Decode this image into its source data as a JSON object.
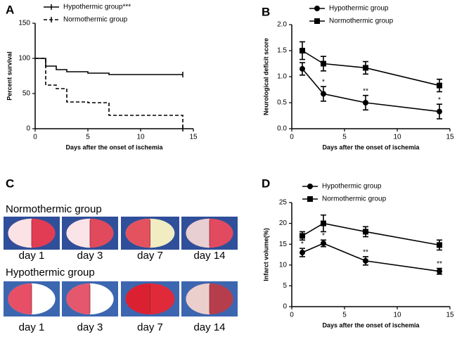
{
  "chart_data": [
    {
      "type": "line",
      "label": "A",
      "ylabel": "Percent survival",
      "xlabel": "Days after the onset of ischemia",
      "xlim": [
        0,
        15
      ],
      "xticks": [
        0,
        5,
        10,
        15
      ],
      "ylim": [
        0,
        150
      ],
      "yticks": [
        0,
        50,
        100,
        150
      ],
      "step": true,
      "series": [
        {
          "name": "Hypothermic group***",
          "color": "#000000",
          "dash": false,
          "marker": "none",
          "x": [
            0,
            1,
            2,
            3,
            5,
            7,
            14
          ],
          "values": [
            100,
            89,
            84,
            81,
            79,
            77,
            77
          ]
        },
        {
          "name": "Normothermic group",
          "color": "#000000",
          "dash": true,
          "marker": "none",
          "x": [
            0,
            1,
            2,
            3,
            5,
            7,
            14
          ],
          "values": [
            100,
            62,
            57,
            38,
            37,
            19,
            0
          ]
        }
      ]
    },
    {
      "type": "line",
      "label": "B",
      "ylabel": "Neurological deficit score",
      "xlabel": "Days after the onset of ischemia",
      "xlim": [
        0,
        15
      ],
      "xticks": [
        0,
        5,
        10,
        15
      ],
      "ylim": [
        0,
        2
      ],
      "yticks": [
        {
          "value": 0,
          "label": "0.0"
        },
        0.5,
        {
          "value": 1,
          "label": "1.0"
        },
        1.5,
        {
          "value": 2,
          "label": "2.0"
        }
      ],
      "step": false,
      "series": [
        {
          "name": "Hypothermic group",
          "color": "#000000",
          "dash": false,
          "marker": "circle",
          "x": [
            1,
            3,
            7,
            14
          ],
          "values": [
            1.15,
            0.67,
            0.5,
            0.33
          ],
          "errors": [
            0.12,
            0.14,
            0.14,
            0.14
          ],
          "significance": [
            null,
            "*",
            "**",
            "*"
          ]
        },
        {
          "name": "Normothermic group",
          "color": "#000000",
          "dash": false,
          "marker": "square",
          "x": [
            1,
            3,
            7,
            14
          ],
          "values": [
            1.5,
            1.25,
            1.17,
            0.83
          ],
          "errors": [
            0.17,
            0.14,
            0.12,
            0.12
          ]
        }
      ]
    },
    {
      "type": "line",
      "label": "D",
      "ylabel": "Infarct volume(%)",
      "xlabel": "Days after the onset of ischemia",
      "xlim": [
        0,
        15
      ],
      "xticks": [
        0,
        5,
        10,
        15
      ],
      "ylim": [
        0,
        25
      ],
      "yticks": [
        0,
        5,
        10,
        15,
        20,
        25
      ],
      "step": false,
      "series": [
        {
          "name": "Hypothermic group",
          "color": "#000000",
          "dash": false,
          "marker": "circle",
          "x": [
            1,
            3,
            7,
            14
          ],
          "values": [
            13,
            15.2,
            11,
            8.5
          ],
          "errors": [
            1,
            0.8,
            1,
            0.7
          ],
          "significance": [
            "*",
            "*",
            "**",
            "**"
          ]
        },
        {
          "name": "Normothermic group",
          "color": "#000000",
          "dash": false,
          "marker": "square",
          "x": [
            1,
            3,
            7,
            14
          ],
          "values": [
            17,
            20,
            18,
            14.8
          ],
          "errors": [
            1,
            2,
            1.2,
            1.2
          ]
        }
      ]
    }
  ],
  "image_panel": {
    "label": "C",
    "groups": [
      {
        "name": "Normothermic group",
        "days": [
          "day 1",
          "day 3",
          "day 7",
          "day 14"
        ]
      },
      {
        "name": "Hypothermic group",
        "days": [
          "day 1",
          "day 3",
          "day 7",
          "day 14"
        ]
      }
    ]
  }
}
